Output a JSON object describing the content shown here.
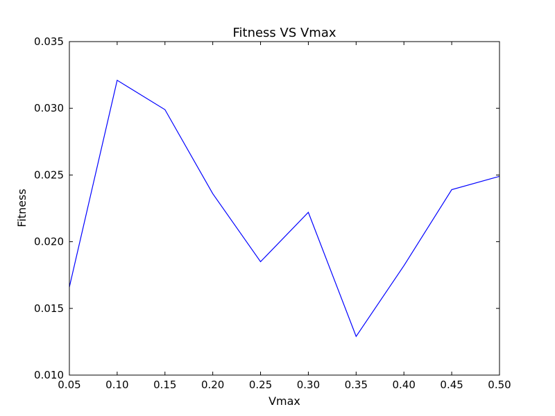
{
  "chart_data": {
    "type": "line",
    "title": "Fitness VS Vmax",
    "xlabel": "Vmax",
    "ylabel": "Fitness",
    "xlim": [
      0.05,
      0.5
    ],
    "ylim": [
      0.01,
      0.035
    ],
    "x_ticks": [
      "0.05",
      "0.10",
      "0.15",
      "0.20",
      "0.25",
      "0.30",
      "0.35",
      "0.40",
      "0.45",
      "0.50"
    ],
    "y_ticks": [
      "0.010",
      "0.015",
      "0.020",
      "0.025",
      "0.030",
      "0.035"
    ],
    "grid": false,
    "series": [
      {
        "x": [
          0.05,
          0.1,
          0.15,
          0.2,
          0.25,
          0.3,
          0.35,
          0.4,
          0.45,
          0.5
        ],
        "values": [
          0.0166,
          0.0321,
          0.0299,
          0.0236,
          0.0185,
          0.0222,
          0.0129,
          0.0182,
          0.0239,
          0.0249
        ],
        "color": "#0000ff"
      }
    ]
  }
}
